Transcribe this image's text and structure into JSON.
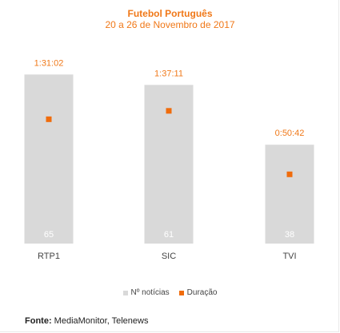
{
  "chart_data": {
    "type": "bar",
    "title": "Futebol Português",
    "subtitle": "20 a 26 de Novembro de 2017",
    "categories": [
      "RTP1",
      "SIC",
      "TVI"
    ],
    "series": [
      {
        "name": "Nº notícias",
        "values": [
          65,
          61,
          38
        ],
        "color": "#d9d9d9"
      },
      {
        "name": "Duração",
        "values": [
          "1:31:02",
          "1:37:11",
          "0:50:42"
        ],
        "seconds": [
          5462,
          5831,
          3042
        ],
        "color": "#f06c0c"
      }
    ],
    "ylim_noticias": [
      0,
      70
    ],
    "ylim_duracao_seconds": [
      0,
      8000
    ],
    "legend_position": "bottom"
  },
  "legend": {
    "noticias_label": "Nº notícias",
    "duracao_label": "Duração"
  },
  "source": {
    "label": "Fonte:",
    "text": " MediaMonitor, Telenews"
  }
}
